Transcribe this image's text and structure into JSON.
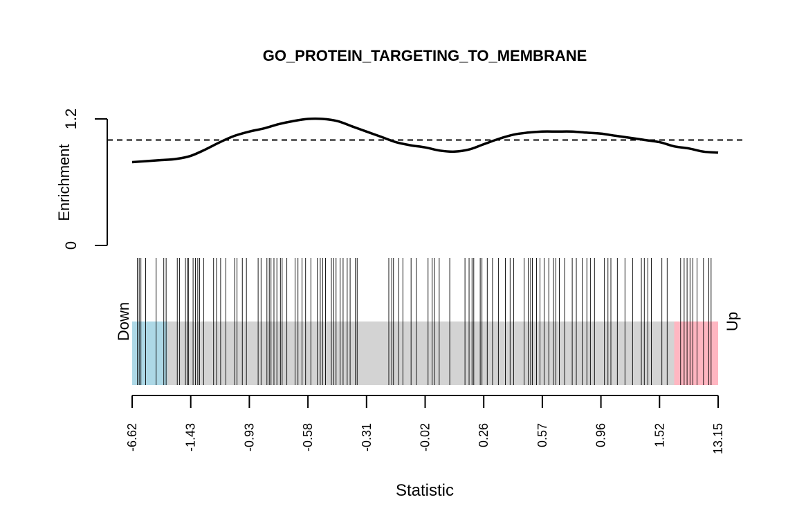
{
  "chart_data": {
    "type": "barcode",
    "title": "GO_PROTEIN_TARGETING_TO_MEMBRANE",
    "xlabel": "Statistic",
    "enrichment": {
      "ylabel": "Enrichment",
      "y_ticks": [
        "0",
        "1.2"
      ],
      "ylim": [
        0,
        1.2
      ],
      "reference_level": 1.0,
      "curve": [
        [
          0.0,
          0.79
        ],
        [
          2.5,
          0.8
        ],
        [
          5.0,
          0.81
        ],
        [
          7.5,
          0.82
        ],
        [
          10.0,
          0.85
        ],
        [
          12.5,
          0.91
        ],
        [
          15.0,
          0.98
        ],
        [
          17.5,
          1.04
        ],
        [
          20.0,
          1.08
        ],
        [
          22.5,
          1.11
        ],
        [
          25.0,
          1.15
        ],
        [
          27.5,
          1.18
        ],
        [
          30.0,
          1.2
        ],
        [
          32.5,
          1.2
        ],
        [
          35.0,
          1.18
        ],
        [
          37.5,
          1.13
        ],
        [
          40.0,
          1.08
        ],
        [
          42.5,
          1.03
        ],
        [
          45.0,
          0.98
        ],
        [
          47.5,
          0.95
        ],
        [
          50.0,
          0.93
        ],
        [
          52.5,
          0.9
        ],
        [
          55.0,
          0.89
        ],
        [
          57.5,
          0.91
        ],
        [
          60.0,
          0.96
        ],
        [
          62.5,
          1.01
        ],
        [
          65.0,
          1.05
        ],
        [
          67.5,
          1.07
        ],
        [
          70.0,
          1.08
        ],
        [
          72.5,
          1.08
        ],
        [
          75.0,
          1.08
        ],
        [
          77.5,
          1.07
        ],
        [
          80.0,
          1.06
        ],
        [
          82.5,
          1.04
        ],
        [
          85.0,
          1.02
        ],
        [
          87.5,
          1.0
        ],
        [
          90.0,
          0.98
        ],
        [
          92.5,
          0.94
        ],
        [
          95.0,
          0.92
        ],
        [
          97.5,
          0.89
        ],
        [
          100.0,
          0.88
        ]
      ]
    },
    "barcode": {
      "down_label": "Down",
      "up_label": "Up",
      "down_region": [
        0,
        6
      ],
      "up_region": [
        92.5,
        100
      ],
      "colors": {
        "down": "#add8e6",
        "up": "#ffb6c1",
        "middle": "#d3d3d3",
        "bar": "#000000"
      },
      "positions": [
        0.9,
        1.2,
        1.5,
        2.3,
        4.1,
        5.4,
        5.8,
        7.7,
        8.1,
        9.1,
        9.4,
        9.6,
        10.4,
        10.8,
        11.2,
        11.5,
        12.2,
        13.9,
        14.4,
        15.1,
        16.0,
        17.5,
        17.9,
        18.8,
        19.5,
        21.5,
        22.0,
        23.0,
        23.4,
        23.7,
        24.2,
        24.7,
        25.3,
        25.6,
        26.4,
        27.8,
        28.3,
        29.0,
        29.6,
        30.5,
        31.6,
        32.1,
        32.5,
        33.0,
        34.0,
        34.4,
        34.8,
        35.5,
        36.0,
        36.7,
        37.2,
        38.1,
        38.4,
        43.8,
        44.3,
        44.6,
        45.5,
        46.2,
        47.6,
        48.5,
        50.5,
        51.2,
        51.6,
        52.4,
        54.2,
        56.8,
        57.5,
        58.0,
        58.3,
        59.4,
        59.7,
        60.6,
        61.5,
        62.5,
        63.7,
        64.5,
        65.1,
        66.9,
        67.6,
        68.0,
        68.3,
        69.0,
        69.6,
        70.3,
        71.1,
        71.9,
        72.3,
        72.9,
        73.8,
        75.1,
        75.8,
        76.8,
        77.6,
        78.2,
        78.9,
        80.6,
        81.2,
        81.7,
        82.8,
        84.1,
        85.4,
        86.9,
        87.4,
        88.0,
        88.6,
        90.4,
        91.3,
        93.6,
        94.2,
        94.7,
        95.2,
        95.7,
        96.4,
        97.5,
        98.4,
        98.8
      ]
    },
    "x_ticks": [
      "-6.62",
      "-1.43",
      "-0.93",
      "-0.58",
      "-0.31",
      "-0.02",
      "0.26",
      "0.57",
      "0.96",
      "1.52",
      "13.15"
    ]
  }
}
